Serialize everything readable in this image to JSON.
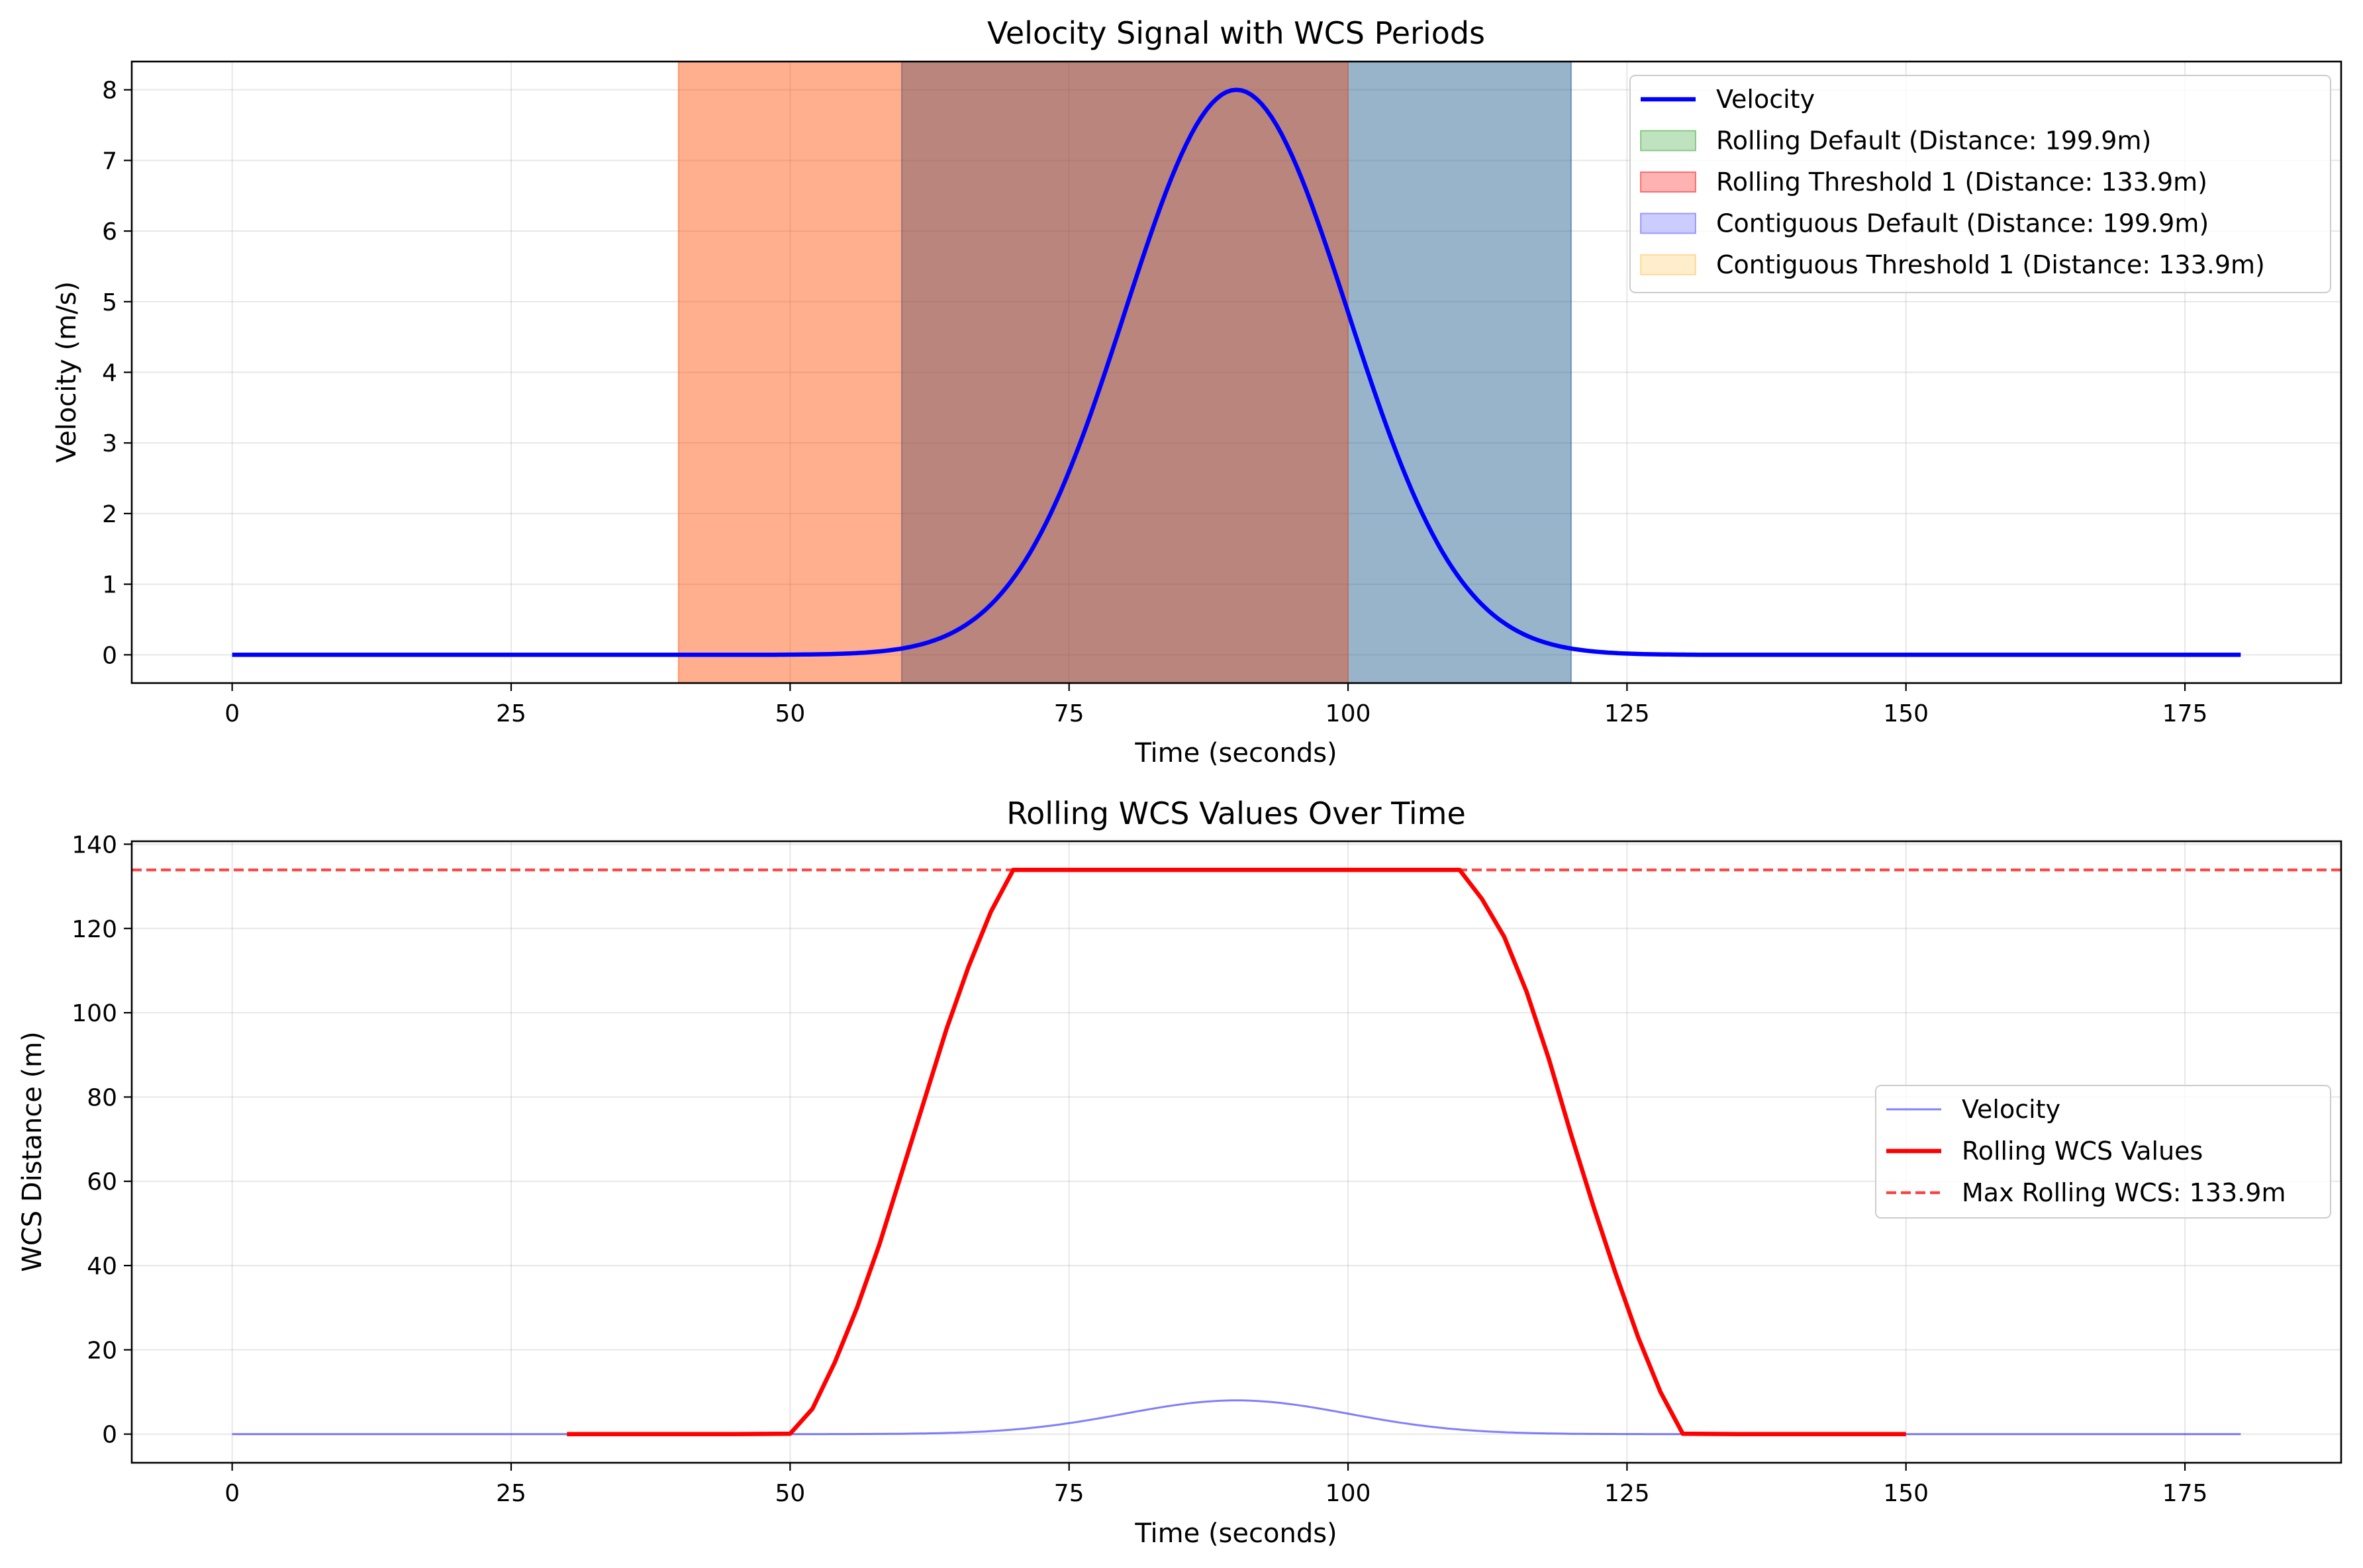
{
  "figure": {
    "background": "#ffffff"
  },
  "chart_data": [
    {
      "type": "line",
      "title": "Velocity Signal with WCS Periods",
      "xlabel": "Time (seconds)",
      "ylabel": "Velocity (m/s)",
      "xlim": [
        -9,
        189
      ],
      "ylim": [
        -0.4,
        8.4
      ],
      "xticks": [
        0,
        25,
        50,
        75,
        100,
        125,
        150,
        175
      ],
      "yticks": [
        0,
        1,
        2,
        3,
        4,
        5,
        6,
        7,
        8
      ],
      "grid": true,
      "legend_position": "upper right",
      "curve": {
        "function": "gaussian",
        "peak": 8,
        "center": 90,
        "sigma": 10,
        "x_range": [
          0,
          180
        ]
      },
      "series": [
        {
          "name": "Velocity",
          "kind": "line",
          "color": "#0000ff",
          "x": [
            0,
            30,
            40,
            50,
            55,
            60,
            62,
            65,
            68,
            70,
            72,
            74,
            76,
            78,
            80,
            82,
            84,
            86,
            88,
            90,
            92,
            94,
            96,
            98,
            100,
            102,
            104,
            106,
            108,
            110,
            112,
            115,
            118,
            120,
            125,
            130,
            150,
            180
          ],
          "y": [
            0,
            0,
            0,
            0,
            0.02,
            0.09,
            0.16,
            0.35,
            0.71,
            1.08,
            1.58,
            2.23,
            3.02,
            3.9,
            4.85,
            5.81,
            6.7,
            7.41,
            7.84,
            8.0,
            7.84,
            7.41,
            6.7,
            5.81,
            4.85,
            3.9,
            3.02,
            2.23,
            1.58,
            1.08,
            0.71,
            0.35,
            0.16,
            0.09,
            0.02,
            0,
            0,
            0
          ]
        },
        {
          "name": "Rolling Default (Distance: 199.9m)",
          "kind": "span",
          "x_start": 60,
          "x_end": 120,
          "color": "#2ca02c",
          "alpha": 0.3
        },
        {
          "name": "Rolling Threshold 1 (Distance: 133.9m)",
          "kind": "span",
          "x_start": 40,
          "x_end": 100,
          "color": "#ff0000",
          "alpha": 0.3
        },
        {
          "name": "Contiguous Default (Distance: 199.9m)",
          "kind": "span",
          "x_start": 60,
          "x_end": 120,
          "color": "#0000ff",
          "alpha": 0.2
        },
        {
          "name": "Contiguous Threshold 1 (Distance: 133.9m)",
          "kind": "span",
          "x_start": 40,
          "x_end": 100,
          "color": "#ffa500",
          "alpha": 0.2
        }
      ]
    },
    {
      "type": "line",
      "title": "Rolling WCS Values Over Time",
      "xlabel": "Time (seconds)",
      "ylabel": "WCS Distance (m)",
      "xlim": [
        -9,
        189
      ],
      "ylim": [
        -6.8,
        140.7
      ],
      "xticks": [
        0,
        25,
        50,
        75,
        100,
        125,
        150,
        175
      ],
      "yticks": [
        0,
        20,
        40,
        60,
        80,
        100,
        120,
        140
      ],
      "grid": true,
      "legend_position": "center right",
      "series": [
        {
          "name": "Velocity",
          "kind": "line",
          "color": "#0000ff",
          "alpha": 0.5,
          "x": [
            0,
            30,
            40,
            50,
            55,
            60,
            62,
            65,
            68,
            70,
            72,
            74,
            76,
            78,
            80,
            82,
            84,
            86,
            88,
            90,
            92,
            94,
            96,
            98,
            100,
            102,
            104,
            106,
            108,
            110,
            112,
            115,
            118,
            120,
            125,
            130,
            150,
            180
          ],
          "y": [
            0,
            0,
            0,
            0,
            0.02,
            0.09,
            0.16,
            0.35,
            0.71,
            1.08,
            1.58,
            2.23,
            3.02,
            3.9,
            4.85,
            5.81,
            6.7,
            7.41,
            7.84,
            8.0,
            7.84,
            7.41,
            6.7,
            5.81,
            4.85,
            3.9,
            3.02,
            2.23,
            1.58,
            1.08,
            0.71,
            0.35,
            0.16,
            0.09,
            0.02,
            0,
            0,
            0
          ]
        },
        {
          "name": "Rolling WCS Values",
          "kind": "line",
          "color": "#ff0000",
          "x": [
            30,
            35,
            40,
            45,
            50,
            52,
            54,
            56,
            58,
            60,
            62,
            64,
            66,
            68,
            70,
            75,
            80,
            90,
            100,
            105,
            110,
            112,
            114,
            116,
            118,
            120,
            122,
            124,
            126,
            128,
            130,
            135,
            140,
            150
          ],
          "y": [
            0,
            0,
            0,
            0,
            0.1,
            6,
            17,
            30,
            45,
            62,
            79,
            96,
            111,
            124,
            133.9,
            133.9,
            133.9,
            133.9,
            133.9,
            133.9,
            133.9,
            127,
            118,
            105,
            89,
            71,
            54,
            38,
            23,
            10,
            0.1,
            0,
            0,
            0
          ]
        },
        {
          "name": "Max Rolling WCS: 133.9m",
          "kind": "hline",
          "y_value": 133.9,
          "color": "#ff0000",
          "alpha": 0.75,
          "dashed": true
        }
      ]
    }
  ]
}
